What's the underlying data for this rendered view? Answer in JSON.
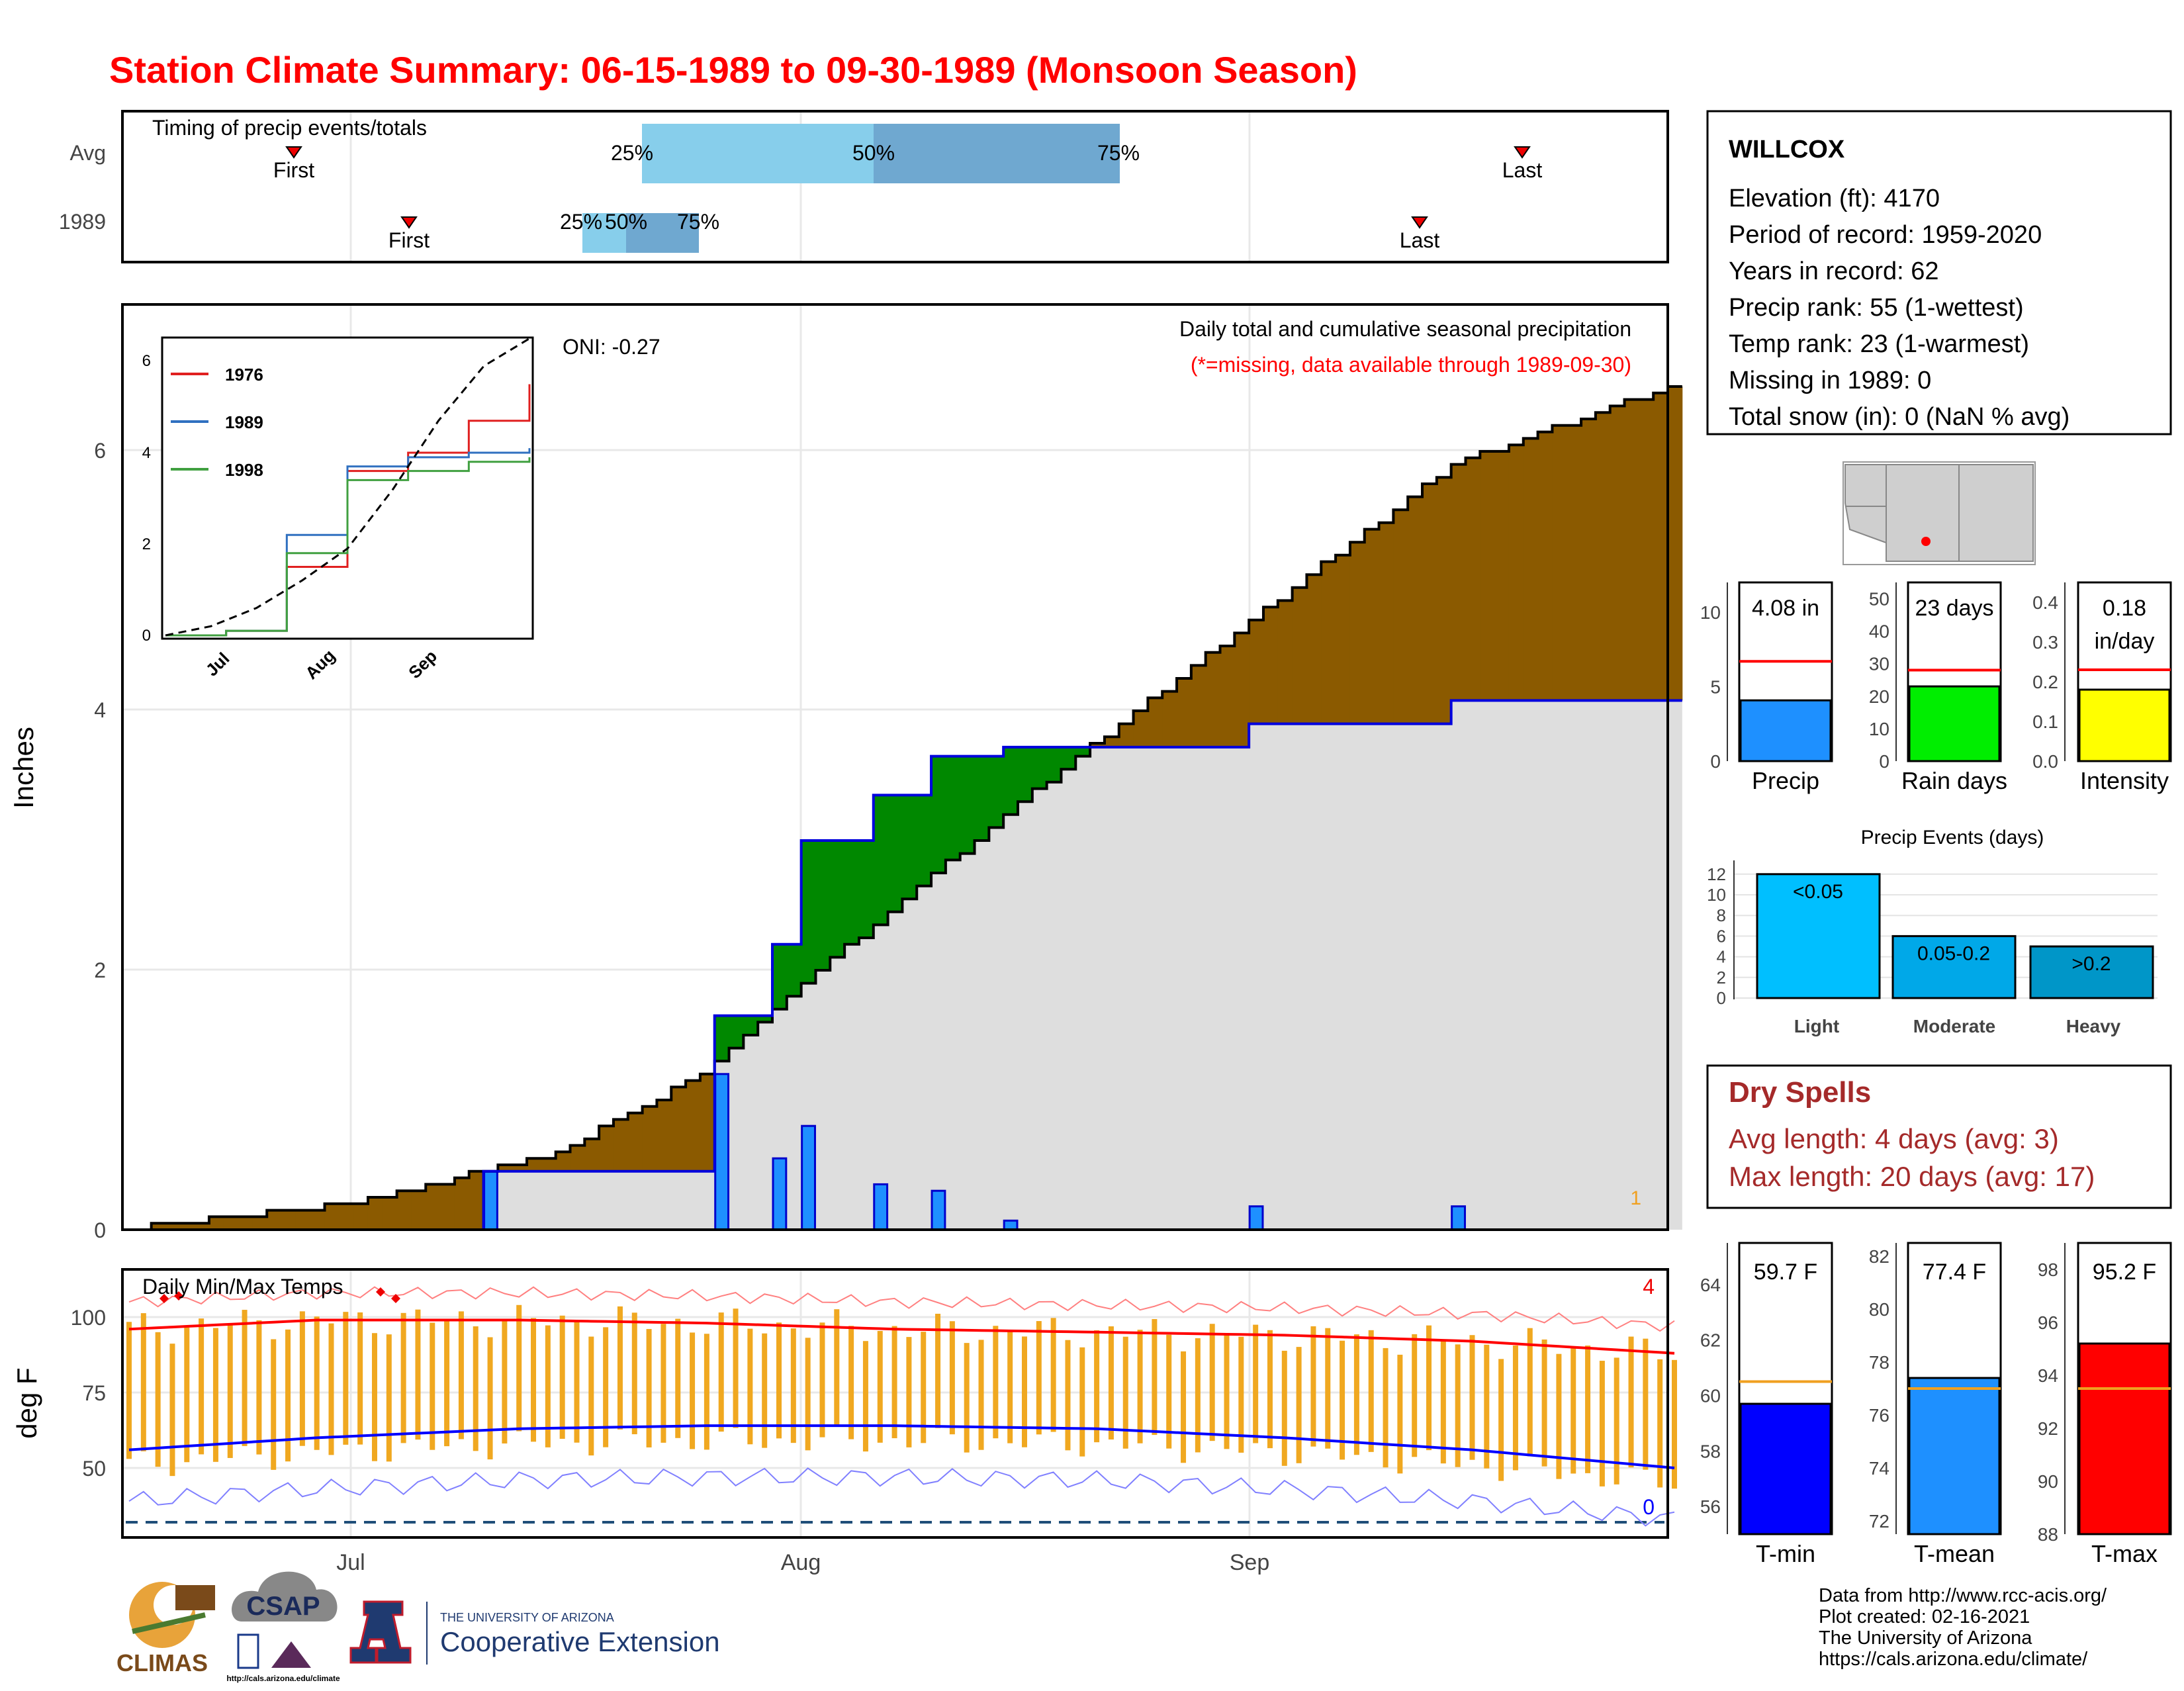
{
  "title": "Station Climate Summary: 06-15-1989 to 09-30-1989 (Monsoon Season)",
  "timing": {
    "title": "Timing of precip events/totals",
    "rows": [
      "Avg",
      "1989"
    ],
    "avg": {
      "first": "First",
      "last": "Last",
      "p25": "25%",
      "p50": "50%",
      "p75": "75%"
    },
    "y1989": {
      "first": "First",
      "last": "Last",
      "p25": "25%",
      "p50": "50%",
      "p75": "75%"
    }
  },
  "precip_panel": {
    "title": "Daily total and cumulative seasonal precipitation",
    "subtitle": "(*=missing, data available through 1989-09-30)",
    "oni": "ONI: -0.27",
    "y_label": "Inches",
    "y_ticks": [
      "0",
      "2",
      "4",
      "6"
    ],
    "corner_count": "1"
  },
  "inset": {
    "legend": [
      "1976",
      "1989",
      "1998"
    ],
    "y_ticks": [
      "0",
      "2",
      "4",
      "6"
    ],
    "x_ticks": [
      "Jul",
      "Aug",
      "Sep"
    ]
  },
  "temp_panel": {
    "title": "Daily Min/Max Temps",
    "y_label": "deg F",
    "y_ticks": [
      "50",
      "75",
      "100"
    ],
    "x_ticks": [
      "Jul",
      "Aug",
      "Sep"
    ],
    "count_high": "4",
    "count_low": "0"
  },
  "station": {
    "name": "WILLCOX",
    "lines": [
      "Elevation (ft): 4170",
      "Period of record: 1959-2020",
      "Years in record: 62",
      "Precip rank: 55 (1-wettest)",
      "Temp rank: 23 (1-warmest)",
      "Missing in 1989: 0",
      "Total snow (in): 0 (NaN % avg)"
    ]
  },
  "mini_bars": [
    {
      "label": "Precip",
      "value_text": "4.08 in",
      "ticks": [
        "0",
        "5",
        "10"
      ]
    },
    {
      "label": "Rain days",
      "value_text": "23 days",
      "ticks": [
        "0",
        "10",
        "20",
        "30",
        "40",
        "50"
      ]
    },
    {
      "label": "Intensity",
      "value_text": "0.18",
      "value_text2": "in/day",
      "ticks": [
        "0.0",
        "0.1",
        "0.2",
        "0.3",
        "0.4"
      ]
    }
  ],
  "events": {
    "title": "Precip Events (days)",
    "categories": [
      "Light",
      "Moderate",
      "Heavy"
    ],
    "labels": [
      "<0.05",
      "0.05-0.2",
      ">0.2"
    ],
    "ticks": [
      "0",
      "2",
      "4",
      "6",
      "8",
      "10",
      "12"
    ]
  },
  "dry_spells": {
    "title": "Dry Spells",
    "avg": "Avg length: 4 days (avg: 3)",
    "max": "Max length: 20 days (avg: 17)"
  },
  "temp_bars": [
    {
      "label": "T-min",
      "value_text": "59.7 F",
      "ticks": [
        "56",
        "58",
        "60",
        "62",
        "64"
      ]
    },
    {
      "label": "T-mean",
      "value_text": "77.4 F",
      "ticks": [
        "72",
        "74",
        "76",
        "78",
        "80",
        "82"
      ]
    },
    {
      "label": "T-max",
      "value_text": "95.2 F",
      "ticks": [
        "88",
        "90",
        "92",
        "94",
        "96",
        "98"
      ]
    }
  ],
  "credits": [
    "Data from http://www.rcc-acis.org/",
    "Plot created: 02-16-2021",
    "The University of Arizona",
    "https://cals.arizona.edu/climate/"
  ],
  "logos": {
    "climas": "CLIMAS",
    "csap": "CSAP",
    "csap_url": "http://cals.arizona.edu/climate",
    "ua_small": "THE UNIVERSITY OF ARIZONA",
    "ua_big": "Cooperative Extension"
  },
  "colors": {
    "title": "#ff0000",
    "above_avg": "#008800",
    "below_avg": "#8B5A00",
    "precip_bar": "#1E90FF",
    "tmax_line": "#ff0000",
    "tmin_line": "#0000ff",
    "daily_range": "#f0a820",
    "dry_spells": "#a52a2a"
  },
  "chart_data": [
    {
      "type": "line",
      "title": "Daily total and cumulative seasonal precipitation",
      "ylabel": "Inches",
      "ylim": [
        0,
        7.1
      ],
      "x_ticks": [
        "Jul",
        "Aug",
        "Sep"
      ],
      "series": [
        {
          "name": "1989",
          "x": [
            "06-15",
            "07-01",
            "07-10",
            "07-25",
            "07-26",
            "07-30",
            "08-01",
            "08-06",
            "08-10",
            "08-15",
            "09-01",
            "09-15",
            "09-30"
          ],
          "values": [
            0.0,
            0.0,
            0.45,
            0.45,
            1.65,
            2.2,
            3.0,
            3.35,
            3.65,
            3.72,
            3.9,
            4.08,
            4.08
          ]
        }
      ],
      "average_cumulative": {
        "x": [
          "06-15",
          "07-01",
          "07-15",
          "07-25",
          "08-01",
          "08-15",
          "09-01",
          "09-15",
          "09-30"
        ],
        "values": [
          0.0,
          0.2,
          0.6,
          1.2,
          1.9,
          3.2,
          4.7,
          5.9,
          6.5
        ]
      }
    },
    {
      "type": "line",
      "series": [
        {
          "name": "1976",
          "values": [
            0,
            0.1,
            1.5,
            3.6,
            4.0,
            4.7,
            5.5
          ]
        },
        {
          "name": "1989",
          "values": [
            0,
            0.1,
            2.2,
            3.7,
            3.9,
            4.0,
            4.1
          ]
        },
        {
          "name": "1998",
          "values": [
            0,
            0.1,
            1.8,
            3.4,
            3.6,
            3.8,
            3.9
          ]
        }
      ],
      "x_ticks": [
        "Jul",
        "Aug",
        "Sep"
      ],
      "ylim": [
        0,
        6.5
      ]
    },
    {
      "type": "line",
      "title": "Daily Min/Max Temps",
      "ylabel": "deg F",
      "ylim": [
        30,
        115
      ],
      "series": [
        {
          "name": "avg max",
          "values": [
            96,
            99,
            99,
            98,
            96,
            95,
            94,
            92,
            88
          ]
        },
        {
          "name": "avg min",
          "values": [
            56,
            60,
            63,
            64,
            64,
            63,
            60,
            56,
            50
          ]
        }
      ]
    },
    {
      "type": "bar",
      "categories": [
        "Precip"
      ],
      "values": [
        4.08
      ],
      "ylim": [
        0,
        12
      ],
      "average": 6.7
    },
    {
      "type": "bar",
      "categories": [
        "Rain days"
      ],
      "values": [
        23
      ],
      "ylim": [
        0,
        55
      ],
      "average": 28
    },
    {
      "type": "bar",
      "categories": [
        "Intensity"
      ],
      "values": [
        0.18
      ],
      "ylim": [
        0,
        0.45
      ],
      "average": 0.23
    },
    {
      "type": "bar",
      "title": "Precip Events (days)",
      "categories": [
        "Light",
        "Moderate",
        "Heavy"
      ],
      "values": [
        12,
        6,
        5
      ],
      "ylim": [
        0,
        12.5
      ]
    },
    {
      "type": "bar",
      "categories": [
        "T-min"
      ],
      "values": [
        59.7
      ],
      "ylim": [
        55,
        65.5
      ],
      "average": 60.5
    },
    {
      "type": "bar",
      "categories": [
        "T-mean"
      ],
      "values": [
        77.4
      ],
      "ylim": [
        71.5,
        82.5
      ],
      "average": 77.0
    },
    {
      "type": "bar",
      "categories": [
        "T-max"
      ],
      "values": [
        95.2
      ],
      "ylim": [
        88,
        99
      ],
      "average": 93.5
    }
  ]
}
